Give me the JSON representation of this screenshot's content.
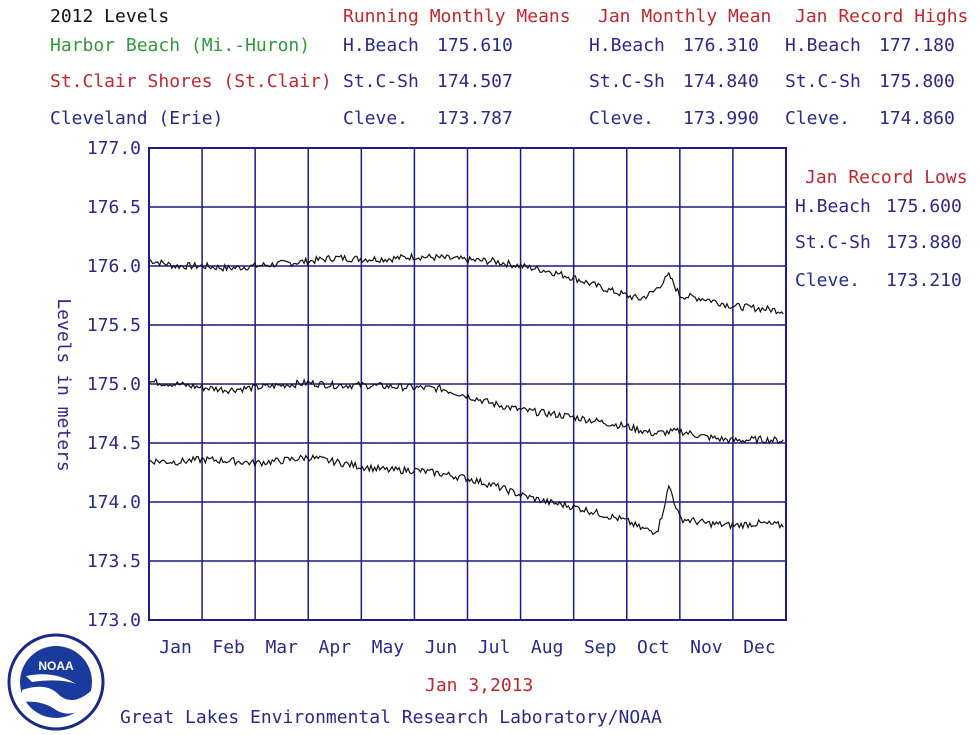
{
  "header": {
    "title": "2012 Levels",
    "running_means_label": "Running Monthly Means",
    "jan_mean_label": "Jan Monthly Mean",
    "jan_highs_label": "Jan Record Highs",
    "jan_lows_label": "Jan Record Lows"
  },
  "stations": [
    {
      "name": "Harbor Beach (Mi.-Huron)",
      "abbr": "H.Beach",
      "running_mean": "175.610",
      "jan_mean": "176.310",
      "jan_high": "177.180",
      "jan_low": "175.600",
      "color": "#2e9a3a"
    },
    {
      "name": "St.Clair Shores (St.Clair)",
      "abbr": "St.C-Sh",
      "running_mean": "174.507",
      "jan_mean": "174.840",
      "jan_high": "175.800",
      "jan_low": "173.880",
      "color": "#c0282e"
    },
    {
      "name": "Cleveland (Erie)",
      "abbr": "Cleve.",
      "running_mean": "173.787",
      "jan_mean": "173.990",
      "jan_high": "174.860",
      "jan_low": "173.210",
      "color": "#2a2a8c"
    }
  ],
  "footer": {
    "date": "Jan 3,2013",
    "lab": "Great Lakes Environmental Research Laboratory/NOAA",
    "logo_text": "NOAA"
  },
  "colors": {
    "axis_text": "#2a2a8c",
    "grid": "#1c1c8a",
    "series_line": "#111111",
    "date_text": "#c0282e"
  },
  "chart_data": {
    "type": "line",
    "ylabel": "Levels in meters",
    "ylim": [
      173.0,
      177.0
    ],
    "yticks": [
      "177.0",
      "176.5",
      "176.0",
      "175.5",
      "175.0",
      "174.5",
      "174.0",
      "173.5",
      "173.0"
    ],
    "categories": [
      "Jan",
      "Feb",
      "Mar",
      "Apr",
      "May",
      "Jun",
      "Jul",
      "Aug",
      "Sep",
      "Oct",
      "Nov",
      "Dec"
    ],
    "grid": true,
    "series": [
      {
        "name": "H.Beach",
        "x": [
          0,
          0.5,
          1,
          1.5,
          2,
          2.5,
          3,
          3.5,
          4,
          4.5,
          5,
          5.5,
          6,
          6.5,
          7,
          7.5,
          8,
          8.5,
          9,
          9.25,
          9.5,
          9.8,
          10,
          10.5,
          11,
          11.5,
          11.95
        ],
        "values": [
          176.05,
          176.0,
          176.0,
          175.98,
          176.0,
          176.02,
          176.04,
          176.07,
          176.06,
          176.06,
          176.08,
          176.07,
          176.05,
          176.04,
          176.0,
          175.96,
          175.9,
          175.82,
          175.75,
          175.72,
          175.78,
          175.92,
          175.75,
          175.72,
          175.66,
          175.64,
          175.62
        ]
      },
      {
        "name": "St.C-Sh",
        "x": [
          0,
          0.5,
          1,
          1.5,
          2,
          2.5,
          3,
          3.5,
          4,
          4.5,
          5,
          5.5,
          6,
          6.5,
          7,
          7.5,
          8,
          8.5,
          9,
          9.5,
          10,
          10.5,
          11,
          11.5,
          11.95
        ],
        "values": [
          175.02,
          175.0,
          174.97,
          174.95,
          174.97,
          174.99,
          175.01,
          174.99,
          174.99,
          174.98,
          174.97,
          174.96,
          174.9,
          174.83,
          174.78,
          174.75,
          174.72,
          174.68,
          174.64,
          174.58,
          174.6,
          174.55,
          174.52,
          174.53,
          174.52
        ]
      },
      {
        "name": "Cleve.",
        "x": [
          0,
          0.5,
          1,
          1.5,
          2,
          2.5,
          3,
          3.5,
          4,
          4.5,
          5,
          5.5,
          6,
          6.5,
          7,
          7.5,
          8,
          8.5,
          9,
          9.25,
          9.5,
          9.6,
          9.8,
          10,
          10.5,
          11,
          11.5,
          11.95
        ],
        "values": [
          174.35,
          174.34,
          174.36,
          174.35,
          174.33,
          174.35,
          174.38,
          174.34,
          174.3,
          174.27,
          174.27,
          174.24,
          174.2,
          174.14,
          174.06,
          174.0,
          173.96,
          173.9,
          173.84,
          173.78,
          173.75,
          173.78,
          174.14,
          173.86,
          173.82,
          173.8,
          173.82,
          173.8
        ]
      }
    ]
  }
}
